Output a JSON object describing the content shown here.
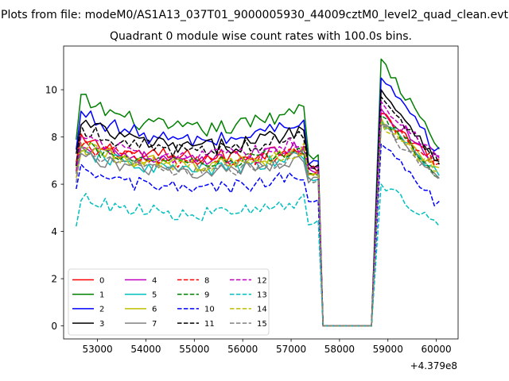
{
  "figure": {
    "suptitle": "Plots from file: modeM0/AS1A13_037T01_9000005930_44009cztM0_level2_quad_clean.evt",
    "title": "Quadrant 0 module wise count rates with 100.0s bins.",
    "offset_text": "+4.379e8"
  },
  "chart_data": {
    "type": "line",
    "title": "Quadrant 0 module wise count rates with 100.0s bins.",
    "xlabel": "",
    "ylabel": "",
    "x_offset": 437900000,
    "xlim": [
      52300,
      60450
    ],
    "ylim": [
      -0.55,
      11.85
    ],
    "x_ticks": [
      53000,
      54000,
      55000,
      56000,
      57000,
      58000,
      59000,
      60000
    ],
    "x_tick_labels": [
      "53000",
      "54000",
      "55000",
      "56000",
      "57000",
      "58000",
      "59000",
      "60000"
    ],
    "y_ticks": [
      0,
      2,
      4,
      6,
      8,
      10
    ],
    "y_tick_labels": [
      "0",
      "2",
      "4",
      "6",
      "8",
      "10"
    ],
    "grid": false,
    "legend_position": "lower-left",
    "legend_columns": 4,
    "x_segments": [
      {
        "start": 52560,
        "step": 100,
        "count": 51
      },
      {
        "start": 58860,
        "step": 100,
        "count": 13
      }
    ],
    "gap": {
      "x_start": 57660,
      "x_end": 58660,
      "value": 0
    },
    "series": [
      {
        "name": "0",
        "color": "#ff0000",
        "dash": "solid",
        "base": 7.25,
        "amp": 0.8,
        "noise": 0.35,
        "end": 6.6,
        "after_start": 9.0,
        "after_end": 6.8
      },
      {
        "name": "1",
        "color": "#008000",
        "dash": "solid",
        "base": 8.55,
        "amp": 1.55,
        "noise": 0.35,
        "end": 7.1,
        "after_start": 11.3,
        "after_end": 7.5
      },
      {
        "name": "2",
        "color": "#0000ff",
        "dash": "solid",
        "base": 8.05,
        "amp": 1.45,
        "noise": 0.35,
        "end": 6.9,
        "after_start": 10.5,
        "after_end": 7.3
      },
      {
        "name": "3",
        "color": "#000000",
        "dash": "solid",
        "base": 7.75,
        "amp": 1.25,
        "noise": 0.35,
        "end": 6.8,
        "after_start": 10.0,
        "after_end": 7.0
      },
      {
        "name": "4",
        "color": "#bf00bf",
        "dash": "solid",
        "base": 7.1,
        "amp": 1.0,
        "noise": 0.3,
        "end": 6.5,
        "after_start": 9.2,
        "after_end": 6.9
      },
      {
        "name": "5",
        "color": "#00bfbf",
        "dash": "solid",
        "base": 6.75,
        "amp": 0.9,
        "noise": 0.3,
        "end": 6.3,
        "after_start": 8.7,
        "after_end": 6.4
      },
      {
        "name": "6",
        "color": "#bfbf00",
        "dash": "solid",
        "base": 6.95,
        "amp": 0.95,
        "noise": 0.3,
        "end": 6.4,
        "after_start": 8.8,
        "after_end": 6.5
      },
      {
        "name": "7",
        "color": "#808080",
        "dash": "solid",
        "base": 6.65,
        "amp": 0.9,
        "noise": 0.3,
        "end": 6.2,
        "after_start": 8.5,
        "after_end": 6.3
      },
      {
        "name": "8",
        "color": "#ff0000",
        "dash": "dashed",
        "base": 7.05,
        "amp": 0.9,
        "noise": 0.3,
        "end": 6.5,
        "after_start": 9.0,
        "after_end": 6.7
      },
      {
        "name": "9",
        "color": "#008000",
        "dash": "dashed",
        "base": 7.0,
        "amp": 0.9,
        "noise": 0.3,
        "end": 6.4,
        "after_start": 8.9,
        "after_end": 6.3
      },
      {
        "name": "10",
        "color": "#0000ff",
        "dash": "dashed",
        "base": 5.95,
        "amp": 0.9,
        "noise": 0.3,
        "end": 5.4,
        "after_start": 7.7,
        "after_end": 5.1
      },
      {
        "name": "11",
        "color": "#000000",
        "dash": "dashed",
        "base": 7.6,
        "amp": 1.1,
        "noise": 0.3,
        "end": 6.7,
        "after_start": 9.7,
        "after_end": 6.9
      },
      {
        "name": "12",
        "color": "#bf00bf",
        "dash": "dashed",
        "base": 7.3,
        "amp": 1.0,
        "noise": 0.3,
        "end": 6.6,
        "after_start": 9.5,
        "after_end": 7.0
      },
      {
        "name": "13",
        "color": "#00bfbf",
        "dash": "dashed",
        "base": 4.85,
        "amp": 0.8,
        "noise": 0.3,
        "end": 4.4,
        "after_start": 6.0,
        "after_end": 4.3
      },
      {
        "name": "14",
        "color": "#bfbf00",
        "dash": "dashed",
        "base": 6.95,
        "amp": 0.95,
        "noise": 0.3,
        "end": 6.4,
        "after_start": 8.6,
        "after_end": 6.4
      },
      {
        "name": "15",
        "color": "#808080",
        "dash": "dashed",
        "base": 6.7,
        "amp": 0.9,
        "noise": 0.3,
        "end": 6.2,
        "after_start": 8.4,
        "after_end": 6.3
      }
    ]
  }
}
